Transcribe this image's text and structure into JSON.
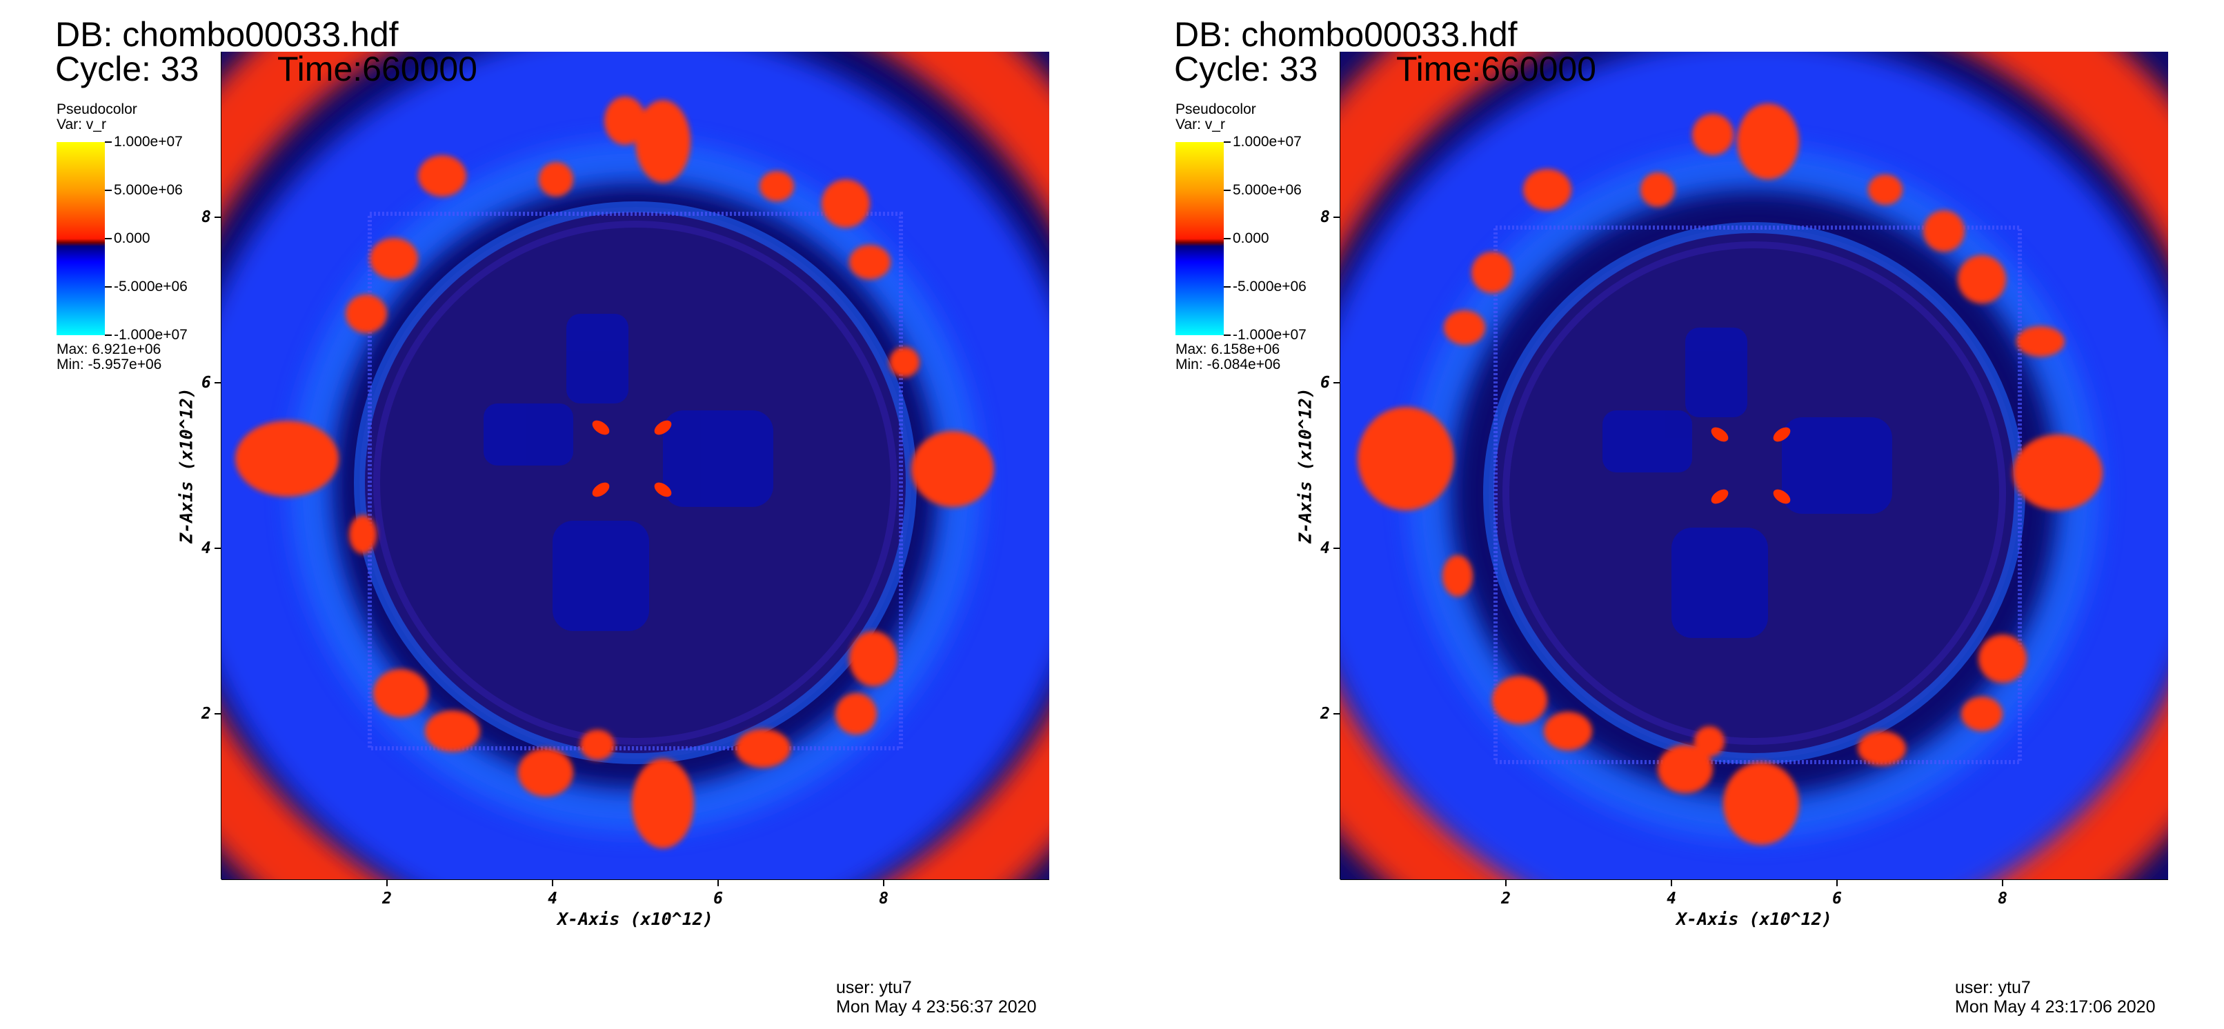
{
  "panels": [
    {
      "db_title": "DB: chombo00033.hdf",
      "cycle_text": "Cycle: 33",
      "time_text": "Time:660000",
      "legend": {
        "title": "Pseudocolor",
        "var": "Var: v_r",
        "ticks": [
          "1.000e+07",
          "5.000e+06",
          "0.000",
          "-5.000e+06",
          "-1.000e+07"
        ],
        "max_text": "Max:  6.921e+06",
        "min_text": "Min: -5.957e+06"
      },
      "x_axis_label": "X-Axis (x10^12)",
      "z_axis_label": "Z-Axis (x10^12)",
      "x_ticks": [
        "2",
        "4",
        "6",
        "8"
      ],
      "z_ticks": [
        "8",
        "6",
        "4",
        "2"
      ],
      "user_text": "user: ytu7",
      "timestamp_text": "Mon May  4 23:56:37 2020"
    },
    {
      "db_title": "DB: chombo00033.hdf",
      "cycle_text": "Cycle: 33",
      "time_text": "Time:660000",
      "legend": {
        "title": "Pseudocolor",
        "var": "Var: v_r",
        "ticks": [
          "1.000e+07",
          "5.000e+06",
          "0.000",
          "-5.000e+06",
          "-1.000e+07"
        ],
        "max_text": "Max:  6.158e+06",
        "min_text": "Min: -6.084e+06"
      },
      "x_axis_label": "X-Axis (x10^12)",
      "z_axis_label": "Z-Axis (x10^12)",
      "x_ticks": [
        "2",
        "4",
        "6",
        "8"
      ],
      "z_ticks": [
        "8",
        "6",
        "4",
        "2"
      ],
      "user_text": "user: ytu7",
      "timestamp_text": "Mon May  4 23:17:06 2020"
    }
  ],
  "colors": {
    "deep_navy": "#0c0a6e",
    "mid_blue": "#1a3cff",
    "bright_blue": "#1e6bff",
    "red": "#ff2a00",
    "orange_red": "#ff5a14",
    "colorbar_top": "#ffff00",
    "colorbar_bottom": "#00ffff"
  }
}
